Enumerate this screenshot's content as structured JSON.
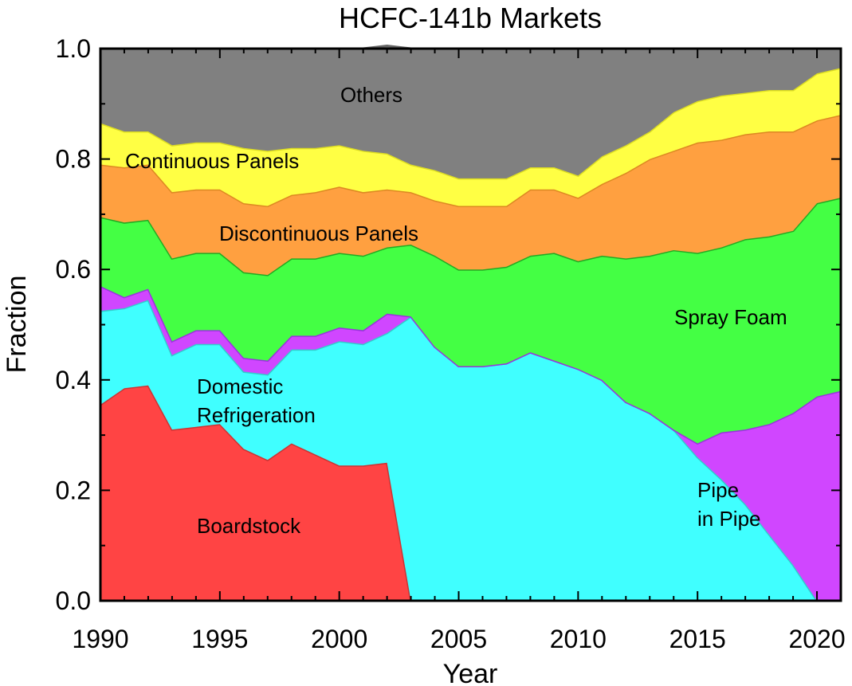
{
  "chart_data": {
    "type": "area",
    "stacked": true,
    "title": "HCFC-141b Markets",
    "xlabel": "Year",
    "ylabel": "Fraction",
    "xlim": [
      1990,
      2021
    ],
    "ylim": [
      0,
      1.0
    ],
    "grid": false,
    "x": [
      1990,
      1991,
      1992,
      1993,
      1994,
      1995,
      1996,
      1997,
      1998,
      1999,
      2000,
      2001,
      2002,
      2003,
      2004,
      2005,
      2006,
      2007,
      2008,
      2009,
      2010,
      2011,
      2012,
      2013,
      2014,
      2015,
      2016,
      2017,
      2018,
      2019,
      2020,
      2021
    ],
    "x_ticks": [
      "1990",
      "1995",
      "2000",
      "2005",
      "2010",
      "2015",
      "2020"
    ],
    "y_ticks": [
      "0.0",
      "0.2",
      "0.4",
      "0.6",
      "0.8",
      "1.0"
    ],
    "series": [
      {
        "name": "Boardstock",
        "label": "Boardstock",
        "color": "#ff4444",
        "edge": "#cc3333",
        "values": [
          0.355,
          0.385,
          0.39,
          0.31,
          0.315,
          0.32,
          0.275,
          0.255,
          0.285,
          0.265,
          0.245,
          0.245,
          0.25,
          0,
          0,
          0,
          0,
          0,
          0,
          0,
          0,
          0,
          0,
          0,
          0,
          0,
          0,
          0,
          0,
          0,
          0,
          0
        ]
      },
      {
        "name": "Domestic Refrigeration",
        "label": [
          "Domestic",
          "Refrigeration"
        ],
        "color": "#40ffff",
        "edge": "#33cccc",
        "values": [
          0.17,
          0.145,
          0.155,
          0.135,
          0.15,
          0.145,
          0.14,
          0.155,
          0.17,
          0.19,
          0.225,
          0.22,
          0.235,
          0.515,
          0.46,
          0.425,
          0.425,
          0.43,
          0.45,
          0.435,
          0.42,
          0.4,
          0.36,
          0.34,
          0.31,
          0.26,
          0.22,
          0.175,
          0.12,
          0.065,
          0.0,
          0.0
        ]
      },
      {
        "name": "Pipe in Pipe",
        "label": [
          "Pipe",
          "in Pipe"
        ],
        "color": "#d046ff",
        "edge": "#9933dd",
        "values": [
          0.045,
          0.02,
          0.02,
          0.025,
          0.025,
          0.025,
          0.025,
          0.025,
          0.025,
          0.025,
          0.025,
          0.025,
          0.035,
          0.0,
          0.0,
          0.0,
          0.0,
          0.0,
          0.0,
          0.0,
          0.0,
          0.0,
          0.0,
          0.0,
          0.0,
          0.025,
          0.085,
          0.135,
          0.2,
          0.275,
          0.37,
          0.38
        ]
      },
      {
        "name": "Spray Foam",
        "label": "Spray Foam",
        "color": "#44ff44",
        "edge": "#22aa22",
        "values": [
          0.125,
          0.135,
          0.125,
          0.15,
          0.14,
          0.14,
          0.155,
          0.155,
          0.14,
          0.14,
          0.135,
          0.135,
          0.12,
          0.13,
          0.165,
          0.175,
          0.175,
          0.175,
          0.175,
          0.195,
          0.195,
          0.225,
          0.26,
          0.285,
          0.325,
          0.345,
          0.335,
          0.345,
          0.34,
          0.33,
          0.35,
          0.35
        ]
      },
      {
        "name": "Discontinuous Panels",
        "label": "Discontinuous Panels",
        "color": "#ffa040",
        "edge": "#dd8822",
        "values": [
          0.095,
          0.1,
          0.1,
          0.12,
          0.115,
          0.115,
          0.125,
          0.125,
          0.115,
          0.12,
          0.12,
          0.115,
          0.105,
          0.095,
          0.1,
          0.115,
          0.115,
          0.11,
          0.12,
          0.115,
          0.115,
          0.13,
          0.155,
          0.175,
          0.18,
          0.2,
          0.195,
          0.19,
          0.19,
          0.18,
          0.15,
          0.15
        ]
      },
      {
        "name": "Continuous Panels",
        "label": "Continuous Panels",
        "color": "#ffff44",
        "edge": "#dddd22",
        "values": [
          0.075,
          0.065,
          0.06,
          0.085,
          0.085,
          0.085,
          0.1,
          0.1,
          0.085,
          0.08,
          0.075,
          0.075,
          0.065,
          0.05,
          0.055,
          0.05,
          0.05,
          0.05,
          0.04,
          0.04,
          0.04,
          0.05,
          0.05,
          0.05,
          0.07,
          0.075,
          0.08,
          0.075,
          0.075,
          0.075,
          0.085,
          0.085
        ]
      },
      {
        "name": "Others",
        "label": "Others",
        "color": "#808080",
        "edge": "#666666",
        "values": [
          0.135,
          0.15,
          0.15,
          0.175,
          0.17,
          0.17,
          0.18,
          0.185,
          0.18,
          0.18,
          0.175,
          0.185,
          0.195,
          0.21,
          0.22,
          0.235,
          0.235,
          0.235,
          0.215,
          0.215,
          0.23,
          0.195,
          0.175,
          0.15,
          0.115,
          0.095,
          0.085,
          0.08,
          0.075,
          0.075,
          0.045,
          0.035
        ]
      }
    ]
  }
}
